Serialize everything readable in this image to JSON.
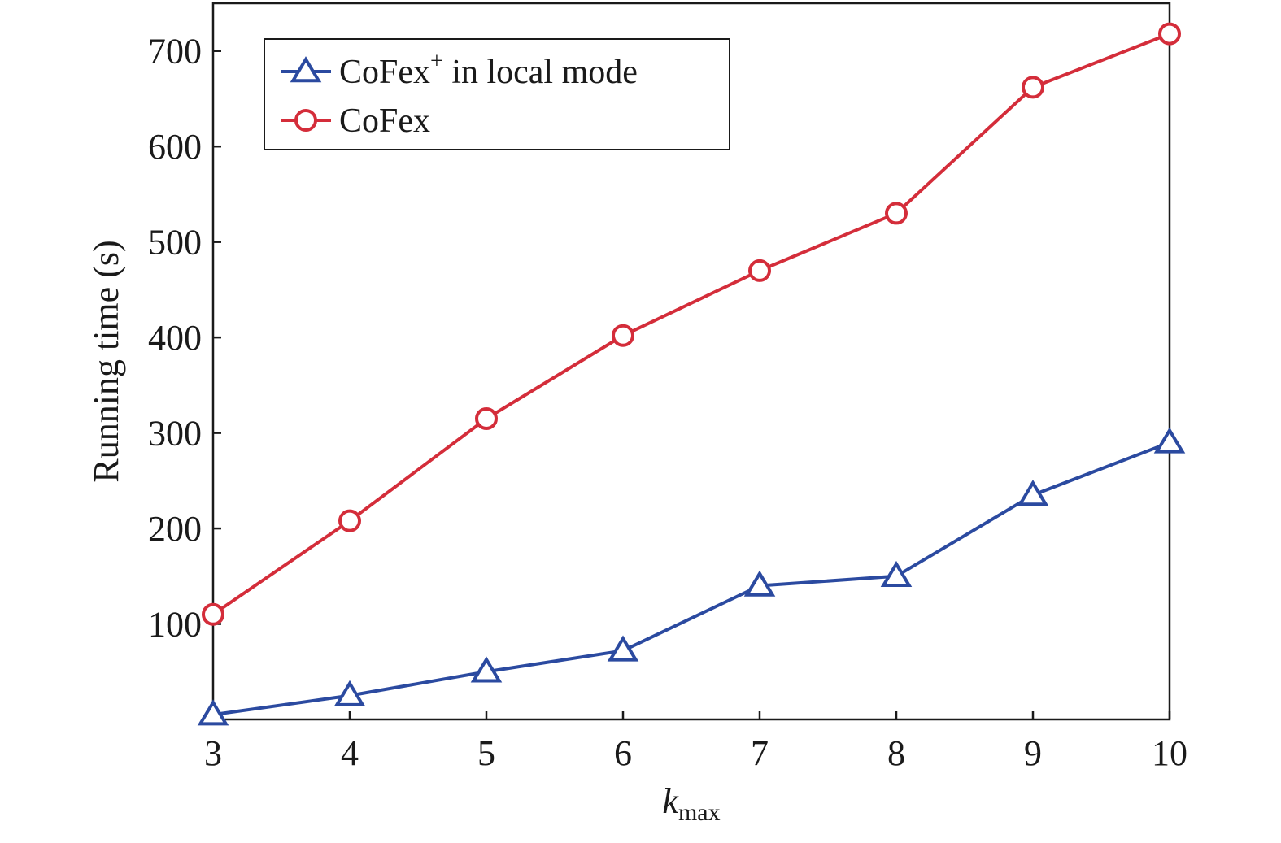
{
  "chart_data": {
    "type": "line",
    "title": "",
    "xlabel": "k",
    "xlabel_subscript": "max",
    "ylabel": "Running time (s)",
    "x": [
      3,
      4,
      5,
      6,
      7,
      8,
      9,
      10
    ],
    "xlim": [
      3,
      10
    ],
    "ylim": [
      0,
      750
    ],
    "xticks": [
      "3",
      "4",
      "5",
      "6",
      "7",
      "8",
      "9",
      "10"
    ],
    "yticks": [
      100,
      200,
      300,
      400,
      500,
      600,
      700
    ],
    "ytick_labels": [
      "100",
      "200",
      "300",
      "400",
      "500",
      "600",
      "700"
    ],
    "grid": false,
    "legend_position": "top-left",
    "series": [
      {
        "name_main": "CoFex",
        "name_sup": "+",
        "name_rest": " in local mode",
        "marker": "triangle",
        "color": "#2b4aa0",
        "values": [
          5,
          25,
          50,
          72,
          140,
          150,
          235,
          290
        ]
      },
      {
        "name_main": "CoFex",
        "name_sup": "",
        "name_rest": "",
        "marker": "circle",
        "color": "#d42d3a",
        "values": [
          110,
          208,
          315,
          402,
          470,
          530,
          662,
          718
        ]
      }
    ]
  }
}
